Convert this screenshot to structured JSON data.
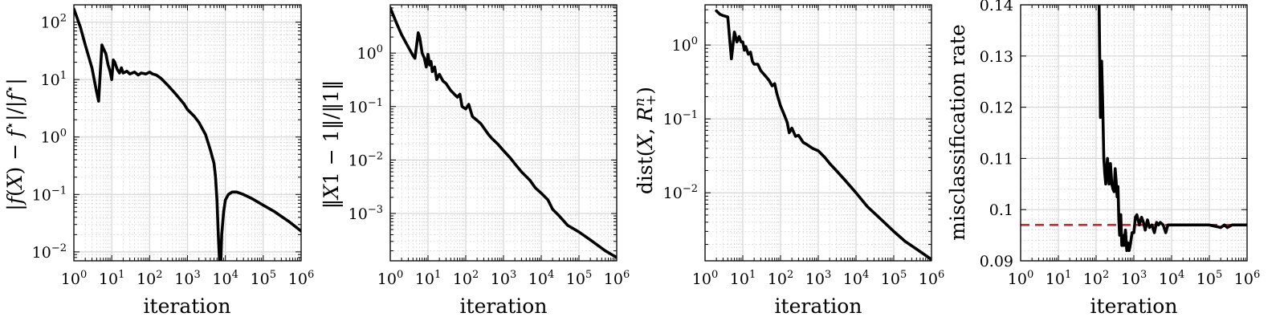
{
  "chart_data": [
    {
      "type": "line",
      "xlabel": "iteration",
      "ylabel": "|f(X) − f⋆|/|f⋆|",
      "xscale": "log",
      "yscale": "log",
      "xlim": [
        1,
        1000000
      ],
      "ylim": [
        0.007,
        200
      ],
      "x_ticks": [
        1,
        10,
        100,
        1000,
        10000,
        100000,
        1000000
      ],
      "x_tick_labels": [
        "10^0",
        "10^1",
        "10^2",
        "10^3",
        "10^4",
        "10^5",
        "10^6"
      ],
      "y_ticks": [
        0.01,
        0.1,
        1,
        10,
        100
      ],
      "y_tick_labels": [
        "10^-2",
        "10^-1",
        "10^0",
        "10^1",
        "10^2"
      ],
      "grid": true,
      "series": [
        {
          "x": [
            1,
            1.5,
            2,
            3,
            4,
            4.5,
            5,
            5.5,
            6,
            7,
            8,
            9,
            10,
            11,
            12,
            14,
            16,
            18,
            20,
            25,
            30,
            40,
            50,
            60,
            80,
            100,
            120,
            150,
            200,
            300,
            500,
            800,
            1000,
            1500,
            2000,
            3000,
            4000,
            5000,
            5500,
            6000,
            6500,
            7000,
            7300,
            7600,
            8000,
            9000,
            10000,
            12000,
            15000,
            20000,
            30000,
            50000,
            100000,
            200000,
            500000,
            1000000
          ],
          "y": [
            170,
            80,
            40,
            16,
            6,
            4.2,
            14,
            40,
            35,
            28,
            18,
            14,
            10,
            22,
            20,
            15,
            13,
            16,
            13,
            14,
            12.5,
            13.5,
            12,
            13,
            12.5,
            13.5,
            12.5,
            12,
            10.5,
            8,
            5.5,
            3.8,
            3,
            2.3,
            1.8,
            1.1,
            0.6,
            0.35,
            0.2,
            0.08,
            0.02,
            0.007,
            0.006,
            0.007,
            0.02,
            0.05,
            0.08,
            0.1,
            0.11,
            0.11,
            0.1,
            0.085,
            0.065,
            0.05,
            0.033,
            0.023
          ]
        }
      ]
    },
    {
      "type": "line",
      "xlabel": "iteration",
      "ylabel": "‖X1 − 1‖/‖1‖",
      "xscale": "log",
      "yscale": "log",
      "xlim": [
        1,
        1000000
      ],
      "ylim": [
        0.00013,
        8
      ],
      "x_ticks": [
        1,
        10,
        100,
        1000,
        10000,
        100000,
        1000000
      ],
      "x_tick_labels": [
        "10^0",
        "10^1",
        "10^2",
        "10^3",
        "10^4",
        "10^5",
        "10^6"
      ],
      "y_ticks": [
        0.001,
        0.01,
        0.1,
        1
      ],
      "y_tick_labels": [
        "10^-3",
        "10^-2",
        "10^-1",
        "10^0"
      ],
      "grid": true,
      "series": [
        {
          "x": [
            1,
            1.5,
            2,
            3,
            4,
            4.5,
            5,
            5.5,
            6,
            7,
            8,
            9,
            10,
            11,
            12,
            13,
            15,
            17,
            20,
            25,
            30,
            40,
            50,
            60,
            70,
            80,
            100,
            120,
            150,
            200,
            250,
            300,
            400,
            500,
            700,
            1000,
            1500,
            2000,
            3000,
            5000,
            7000,
            10000,
            15000,
            20000,
            30000,
            50000,
            100000,
            200000,
            500000,
            1000000
          ],
          "y": [
            7,
            3.5,
            2.2,
            1.3,
            0.9,
            0.8,
            1.4,
            2.4,
            2.0,
            1.0,
            0.8,
            0.55,
            0.95,
            0.6,
            0.7,
            0.45,
            0.55,
            0.32,
            0.4,
            0.3,
            0.27,
            0.2,
            0.17,
            0.15,
            0.17,
            0.1,
            0.09,
            0.11,
            0.065,
            0.055,
            0.048,
            0.04,
            0.03,
            0.025,
            0.02,
            0.015,
            0.011,
            0.0085,
            0.006,
            0.0042,
            0.003,
            0.0024,
            0.0018,
            0.0012,
            0.0009,
            0.0006,
            0.00045,
            0.00032,
            0.0002,
            0.00015
          ]
        }
      ]
    },
    {
      "type": "line",
      "xlabel": "iteration",
      "ylabel": "dist(X, R+^n)",
      "xscale": "log",
      "yscale": "log",
      "xlim": [
        1,
        1000000
      ],
      "ylim": [
        0.0012,
        3.5
      ],
      "x_ticks": [
        1,
        10,
        100,
        1000,
        10000,
        100000,
        1000000
      ],
      "x_tick_labels": [
        "10^0",
        "10^1",
        "10^2",
        "10^3",
        "10^4",
        "10^5",
        "10^6"
      ],
      "y_ticks": [
        0.01,
        0.1,
        1
      ],
      "y_tick_labels": [
        "10^-2",
        "10^-1",
        "10^0"
      ],
      "grid": true,
      "series": [
        {
          "x": [
            2,
            2.5,
            3,
            4,
            4.5,
            5,
            5.5,
            6,
            7,
            8,
            9,
            10,
            11,
            12,
            14,
            16,
            18,
            20,
            25,
            30,
            40,
            50,
            60,
            70,
            80,
            100,
            120,
            150,
            170,
            200,
            250,
            300,
            400,
            500,
            700,
            1000,
            1500,
            2000,
            3000,
            5000,
            10000,
            20000,
            50000,
            100000,
            200000,
            500000,
            1000000
          ],
          "y": [
            2.9,
            2.6,
            2.5,
            2.4,
            1.2,
            0.65,
            1.0,
            1.5,
            1.1,
            1.3,
            1.1,
            1.1,
            0.85,
            0.95,
            0.75,
            0.8,
            0.6,
            0.55,
            0.55,
            0.45,
            0.38,
            0.33,
            0.28,
            0.3,
            0.22,
            0.15,
            0.12,
            0.09,
            0.065,
            0.075,
            0.058,
            0.06,
            0.048,
            0.045,
            0.04,
            0.037,
            0.03,
            0.025,
            0.02,
            0.015,
            0.01,
            0.0065,
            0.0042,
            0.003,
            0.0022,
            0.0016,
            0.00125
          ]
        }
      ]
    },
    {
      "type": "line",
      "xlabel": "iteration",
      "ylabel": "misclassification rate",
      "xscale": "log",
      "yscale": "linear",
      "xlim": [
        1,
        1000000
      ],
      "ylim": [
        0.09,
        0.14
      ],
      "x_ticks": [
        1,
        10,
        100,
        1000,
        10000,
        100000,
        1000000
      ],
      "x_tick_labels": [
        "10^0",
        "10^1",
        "10^2",
        "10^3",
        "10^4",
        "10^5",
        "10^6"
      ],
      "y_ticks": [
        0.09,
        0.1,
        0.11,
        0.12,
        0.13,
        0.14
      ],
      "y_tick_labels": [
        "0.09",
        "0.1",
        "0.11",
        "0.12",
        "0.13",
        "0.14"
      ],
      "grid": true,
      "reference_line": {
        "y": 0.097,
        "color": "#d62728",
        "style": "dashed"
      },
      "series": [
        {
          "x": [
            120,
            130,
            140,
            150,
            160,
            170,
            180,
            200,
            220,
            240,
            260,
            280,
            300,
            320,
            340,
            360,
            380,
            400,
            420,
            450,
            480,
            500,
            550,
            600,
            650,
            700,
            750,
            800,
            900,
            1000,
            1100,
            1200,
            1400,
            1600,
            1800,
            2000,
            2300,
            2600,
            3000,
            3500,
            4000,
            4500,
            5000,
            6000,
            7000,
            8000,
            10000,
            12000,
            15000,
            20000,
            50000,
            100000,
            200000,
            250000,
            300000,
            400000,
            500000,
            1000000
          ],
          "y": [
            0.14,
            0.118,
            0.129,
            0.12,
            0.11,
            0.107,
            0.105,
            0.11,
            0.105,
            0.109,
            0.105,
            0.104,
            0.1035,
            0.108,
            0.1055,
            0.1025,
            0.1045,
            0.098,
            0.095,
            0.099,
            0.093,
            0.095,
            0.093,
            0.096,
            0.092,
            0.0935,
            0.092,
            0.093,
            0.0955,
            0.0955,
            0.0985,
            0.099,
            0.097,
            0.0985,
            0.0975,
            0.096,
            0.098,
            0.0965,
            0.097,
            0.0955,
            0.0975,
            0.097,
            0.0975,
            0.097,
            0.0955,
            0.097,
            0.097,
            0.097,
            0.097,
            0.097,
            0.097,
            0.097,
            0.0965,
            0.097,
            0.0965,
            0.097,
            0.097,
            0.097
          ]
        }
      ]
    }
  ]
}
